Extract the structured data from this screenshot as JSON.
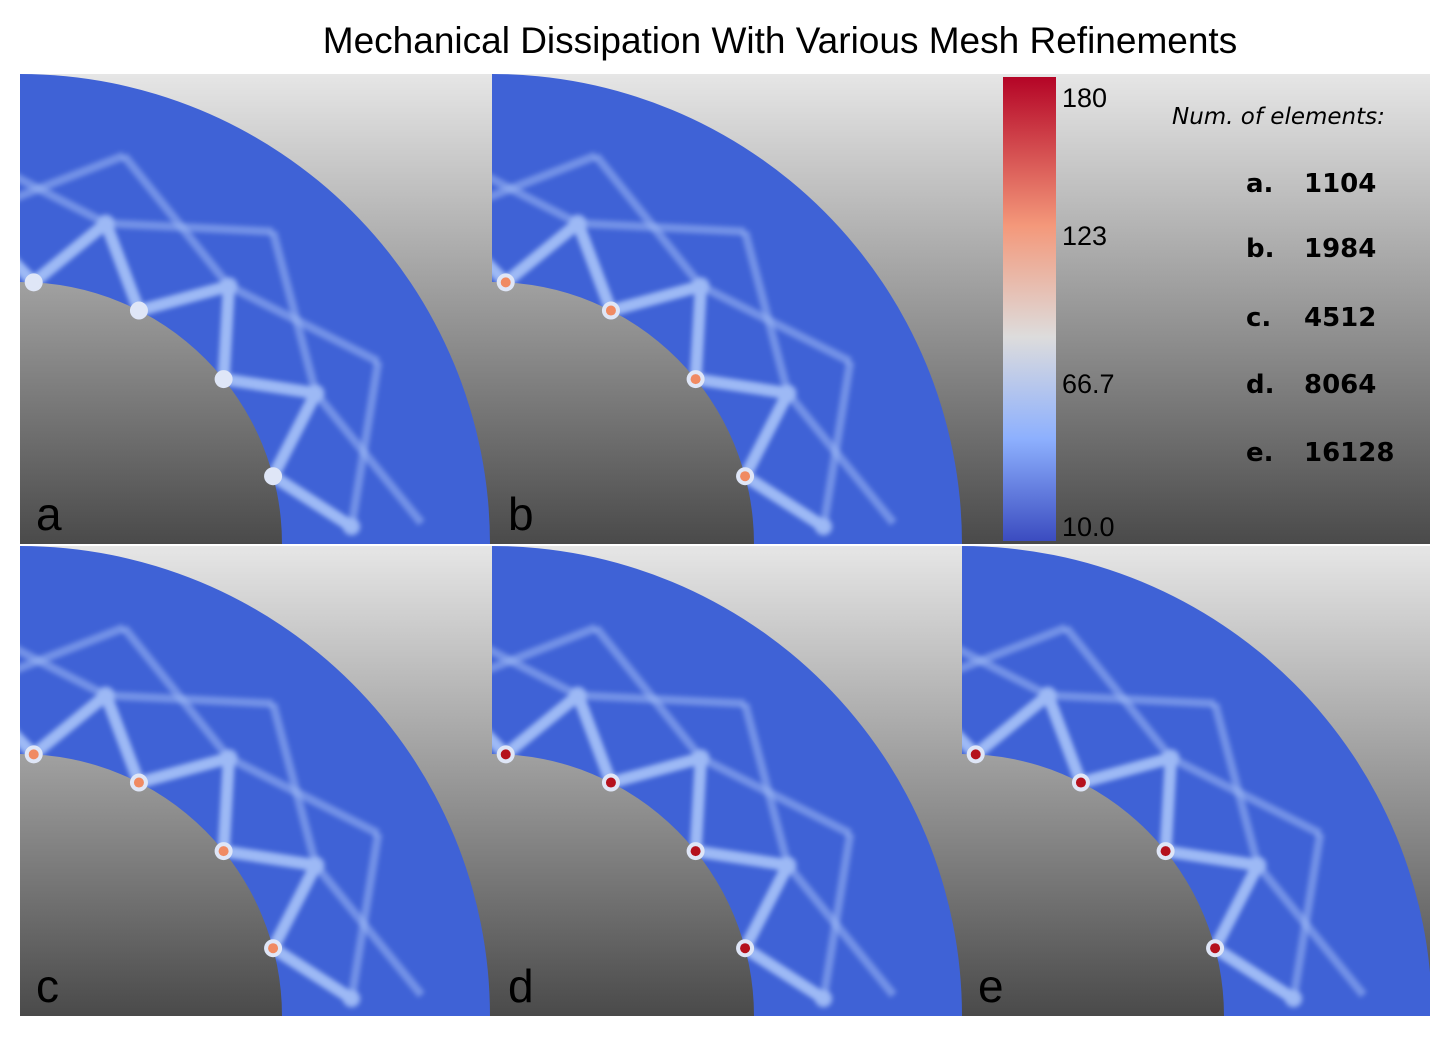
{
  "title": "Mechanical Dissipation With Various Mesh Refinements",
  "colors": {
    "field_base": "#3f62d6",
    "band_light": "#9db9f5",
    "band_white": "#dfe6f7",
    "hot_orange": "#f08a62",
    "hot_red": "#b5111d",
    "bg_top": "#e6e6e6",
    "bg_bottom": "#4a4a4a"
  },
  "colorbar": {
    "ticks": [
      "180",
      "123",
      "66.7",
      "10.0"
    ],
    "stops": [
      "#b40426",
      "#f4987a",
      "#dddcdc",
      "#8db0fe",
      "#3b4cc0"
    ]
  },
  "legend": {
    "heading": "Num. of elements:",
    "items": [
      {
        "letter": "a.",
        "count": "1104"
      },
      {
        "letter": "b.",
        "count": "1984"
      },
      {
        "letter": "c.",
        "count": "4512"
      },
      {
        "letter": "d.",
        "count": "8064"
      },
      {
        "letter": "e.",
        "count": "16128"
      }
    ]
  },
  "panels": [
    {
      "label": "a",
      "elements": 1104,
      "hotspot": "band_white"
    },
    {
      "label": "b",
      "elements": 1984,
      "hotspot": "hot_orange"
    },
    {
      "label": "c",
      "elements": 4512,
      "hotspot": "hot_orange"
    },
    {
      "label": "d",
      "elements": 8064,
      "hotspot": "hot_red"
    },
    {
      "label": "e",
      "elements": 16128,
      "hotspot": "hot_red"
    }
  ]
}
